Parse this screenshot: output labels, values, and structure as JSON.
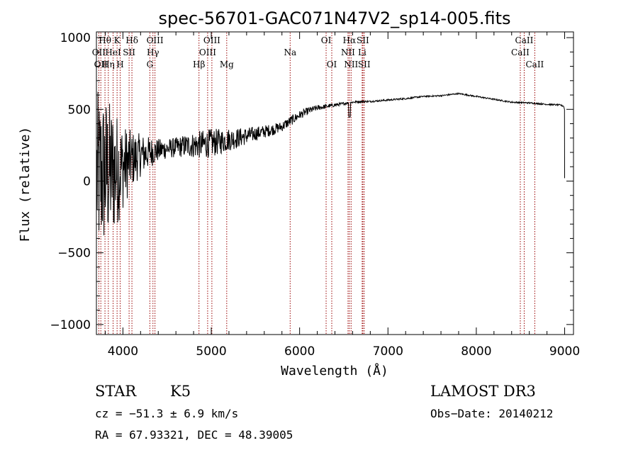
{
  "chart_data": {
    "type": "line",
    "title": "spec-56701-GAC071N47V2_sp14-005.fits",
    "xlabel": "Wavelength (Å)",
    "ylabel": "Flux (relative)",
    "xlim": [
      3700,
      9100
    ],
    "ylim": [
      -1070,
      1040
    ],
    "xticks": [
      4000,
      5000,
      6000,
      7000,
      8000,
      9000
    ],
    "xtick_labels": [
      "4000",
      "5000",
      "6000",
      "7000",
      "8000",
      "9000"
    ],
    "yticks": [
      -1000,
      -500,
      0,
      500,
      1000
    ],
    "ytick_labels": [
      "−1000",
      "−500",
      "0",
      "500",
      "1000"
    ],
    "spectrum_anchors": {
      "x": [
        3700,
        3800,
        3900,
        4000,
        4100,
        4200,
        4300,
        4400,
        4500,
        4600,
        4700,
        4800,
        4900,
        5000,
        5100,
        5200,
        5300,
        5400,
        5500,
        5600,
        5700,
        5800,
        5900,
        6000,
        6100,
        6200,
        6300,
        6400,
        6500,
        6600,
        6700,
        6800,
        6900,
        7000,
        7200,
        7400,
        7600,
        7800,
        8000,
        8200,
        8400,
        8600,
        8800,
        8950,
        9000
      ],
      "y": [
        30,
        60,
        70,
        100,
        150,
        180,
        200,
        215,
        225,
        235,
        245,
        250,
        255,
        265,
        275,
        290,
        300,
        315,
        330,
        345,
        360,
        380,
        420,
        460,
        490,
        510,
        520,
        530,
        540,
        550,
        555,
        555,
        560,
        565,
        575,
        590,
        595,
        610,
        590,
        570,
        550,
        545,
        535,
        530,
        520
      ],
      "noise_amplitude": [
        600,
        550,
        450,
        300,
        200,
        150,
        110,
        80,
        70,
        70,
        80,
        90,
        100,
        100,
        90,
        80,
        70,
        60,
        50,
        45,
        40,
        35,
        35,
        30,
        25,
        20,
        15,
        12,
        10,
        8,
        7,
        6,
        6,
        6,
        6,
        5,
        5,
        5,
        5,
        5,
        5,
        5,
        5,
        5,
        5
      ]
    },
    "line_markers": [
      {
        "wavelength": 3727,
        "label": "OII",
        "row": 2
      },
      {
        "wavelength": 3750,
        "label": "OII",
        "row": 3
      },
      {
        "wavelength": 3797,
        "label": "Hθ",
        "row": 1
      },
      {
        "wavelength": 3835,
        "label": "Hη",
        "row": 3
      },
      {
        "wavelength": 3889,
        "label": "HeI",
        "row": 2
      },
      {
        "wavelength": 3934,
        "label": "K",
        "row": 1
      },
      {
        "wavelength": 3969,
        "label": "H",
        "row": 3
      },
      {
        "wavelength": 4070,
        "label": "SII",
        "row": 2
      },
      {
        "wavelength": 4102,
        "label": "Hδ",
        "row": 1
      },
      {
        "wavelength": 4305,
        "label": "G",
        "row": 3
      },
      {
        "wavelength": 4340,
        "label": "Hγ",
        "row": 2
      },
      {
        "wavelength": 4363,
        "label": "OIII",
        "row": 1
      },
      {
        "wavelength": 4861,
        "label": "Hβ",
        "row": 3
      },
      {
        "wavelength": 4959,
        "label": "OIII",
        "row": 2
      },
      {
        "wavelength": 5007,
        "label": "OIII",
        "row": 1
      },
      {
        "wavelength": 5175,
        "label": "Mg",
        "row": 3
      },
      {
        "wavelength": 5893,
        "label": "Na",
        "row": 2
      },
      {
        "wavelength": 6300,
        "label": "OI",
        "row": 1
      },
      {
        "wavelength": 6364,
        "label": "OI",
        "row": 3
      },
      {
        "wavelength": 6548,
        "label": "NII",
        "row": 2
      },
      {
        "wavelength": 6563,
        "label": "Hα",
        "row": 1
      },
      {
        "wavelength": 6583,
        "label": "NII",
        "row": 3
      },
      {
        "wavelength": 6708,
        "label": "Li",
        "row": 2
      },
      {
        "wavelength": 6716,
        "label": "SII",
        "row": 1
      },
      {
        "wavelength": 6731,
        "label": "SII",
        "row": 3
      },
      {
        "wavelength": 8498,
        "label": "CaII",
        "row": 2
      },
      {
        "wavelength": 8542,
        "label": "CaII",
        "row": 1
      },
      {
        "wavelength": 8662,
        "label": "CaII",
        "row": 3
      }
    ],
    "colors": {
      "axis": "#000000",
      "spectrum": "#000000",
      "markers": "#990000"
    }
  },
  "info": {
    "class": "STAR",
    "subclass": "K5",
    "survey": "LAMOST DR3",
    "cz": "cz = −51.3 ± 6.9 km/s",
    "obs_date": "Obs−Date: 20140212",
    "radec": "RA =  67.93321, DEC =  48.39005"
  }
}
